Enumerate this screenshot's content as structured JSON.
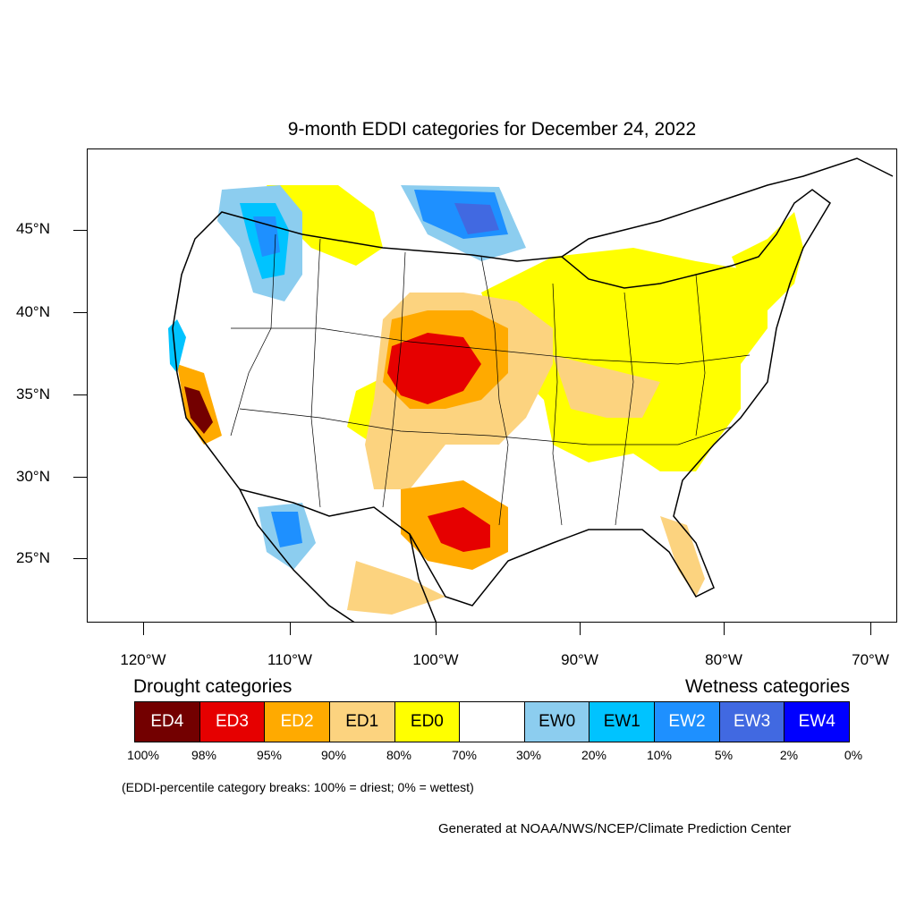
{
  "title": "9-month EDDI categories for December 24, 2022",
  "map": {
    "lat_labels": [
      "45°N",
      "40°N",
      "35°N",
      "30°N",
      "25°N"
    ],
    "lon_labels": [
      "120°W",
      "110°W",
      "100°W",
      "90°W",
      "80°W",
      "70°W"
    ],
    "notable_regions": [
      {
        "region": "central Great Plains (Nebraska/Kansas)",
        "category": "ED3"
      },
      {
        "region": "central California",
        "category": "ED4"
      },
      {
        "region": "south-central Texas",
        "category": "ED3"
      },
      {
        "region": "northern Minnesota / Lake of the Woods",
        "category": "EW2-EW3"
      },
      {
        "region": "Pacific Northwest / Idaho",
        "category": "EW1-EW3"
      },
      {
        "region": "southern Arizona / Sonora",
        "category": "EW1-EW3"
      }
    ]
  },
  "legend": {
    "drought_heading": "Drought categories",
    "wetness_heading": "Wetness categories",
    "categories": [
      {
        "label": "ED4",
        "color": "#730000",
        "text_color": "#ffffff"
      },
      {
        "label": "ED3",
        "color": "#e60000",
        "text_color": "#ffffff"
      },
      {
        "label": "ED2",
        "color": "#ffaa00",
        "text_color": "#ffffff"
      },
      {
        "label": "ED1",
        "color": "#fcd37f",
        "text_color": "#000000"
      },
      {
        "label": "ED0",
        "color": "#ffff00",
        "text_color": "#000000"
      },
      {
        "label": "",
        "color": "#ffffff",
        "text_color": "#000000"
      },
      {
        "label": "EW0",
        "color": "#8ccdef",
        "text_color": "#000000"
      },
      {
        "label": "EW1",
        "color": "#00c3ff",
        "text_color": "#000000"
      },
      {
        "label": "EW2",
        "color": "#1e90ff",
        "text_color": "#ffffff"
      },
      {
        "label": "EW3",
        "color": "#4169e1",
        "text_color": "#ffffff"
      },
      {
        "label": "EW4",
        "color": "#0000ff",
        "text_color": "#ffffff"
      }
    ],
    "percentiles": [
      "100%",
      "98%",
      "95%",
      "90%",
      "80%",
      "70%",
      "30%",
      "20%",
      "10%",
      "5%",
      "2%",
      "0%"
    ]
  },
  "footnote": "(EDDI-percentile category breaks: 100% = driest; 0% = wettest)",
  "credit": "Generated at NOAA/NWS/NCEP/Climate Prediction Center"
}
